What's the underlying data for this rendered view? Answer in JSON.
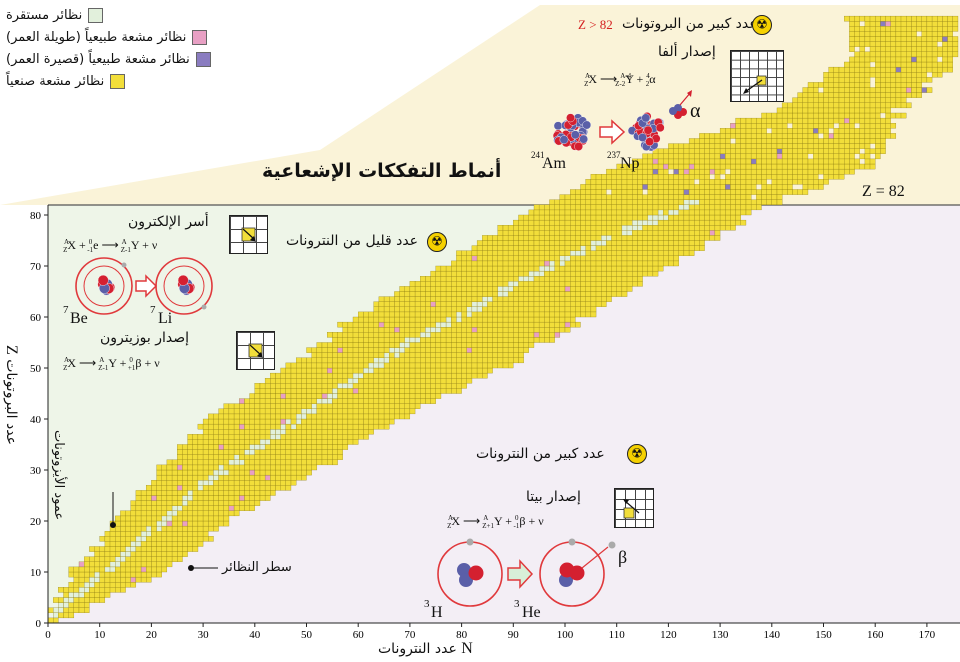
{
  "legend": {
    "items": [
      {
        "label": "نظائر مستقرة",
        "color": "#e2f0dc"
      },
      {
        "label": "نظائر مشعة طبيعياً (طويلة العمر)",
        "color": "#e8a0c4"
      },
      {
        "label": "نظائر مشعة طبيعياً (قصيرة العمر)",
        "color": "#8a7cc0"
      },
      {
        "label": "نظائر مشعة صنعياً",
        "color": "#f2de3a"
      }
    ]
  },
  "title": "أنماط التفككات الإشعاعية",
  "z82_label": "Z = 82",
  "regions": {
    "heavy": {
      "label": "عدد كبير من البروتونات",
      "cond": "Z > 82",
      "decay": "إصدار ألفا"
    },
    "few_neutrons": {
      "label": "عدد قليل من النترونات",
      "decay1": "أسر الإلكترون",
      "decay2": "إصدار بوزيترون"
    },
    "many_neutrons": {
      "label": "عدد كبير من النترونات",
      "decay": "إصدار بيتا"
    }
  },
  "annotations": {
    "isobar_column": "عمود الأيزوتونات",
    "isotope_row": "سطر النظائر"
  },
  "nuclides": {
    "am": "Am",
    "am_mass": "241",
    "np": "Np",
    "np_mass": "237",
    "alpha": "α",
    "be": "Be",
    "be_mass": "7",
    "li": "Li",
    "li_mass": "7",
    "h": "H",
    "h_mass": "3",
    "he": "He",
    "he_mass": "3",
    "beta": "β"
  },
  "equations": {
    "alpha": {
      "lhs": "X",
      "rhs_y": "Y",
      "rhs_a": "α",
      "a": "A",
      "z": "Z",
      "a4": "A-4",
      "z2": "Z-2",
      "four": "4",
      "two": "2"
    },
    "ec": {
      "x": "X",
      "e": "e",
      "y": "Y",
      "nu": "ν",
      "a": "A",
      "z": "Z",
      "zero": "0",
      "m1": "-1",
      "zm1": "Z-1"
    },
    "pos": {
      "x": "X",
      "y": "Y",
      "b": "β",
      "nu": "ν",
      "a": "A",
      "z": "Z",
      "zm1": "Z-1",
      "zero": "0",
      "p1": "+1"
    },
    "beta": {
      "x": "X",
      "y": "Y",
      "b": "β",
      "nu": "ν",
      "a": "A",
      "z": "Z",
      "zp1": "Z+1",
      "zero": "0",
      "m1": "-1"
    },
    "plus": "+",
    "arrow": "⟶"
  },
  "axes": {
    "x_label": "عدد النترونات",
    "x_symbol": "N",
    "y_label": "عدد البروتونات",
    "y_symbol": "Z",
    "x_ticks": [
      "0",
      "10",
      "20",
      "30",
      "40",
      "50",
      "60",
      "70",
      "80",
      "90",
      "100",
      "110",
      "120",
      "130",
      "140",
      "150",
      "160",
      "170"
    ],
    "y_ticks": [
      "0",
      "10",
      "20",
      "30",
      "40",
      "50",
      "60",
      "70",
      "80"
    ]
  },
  "chart_data": {
    "type": "heatmap",
    "xlabel": "N عدد النترونات",
    "ylabel": "Z عدد البروتونات",
    "xlim": [
      0,
      176
    ],
    "ylim": [
      0,
      82
    ],
    "band": [
      {
        "z": 0,
        "n_min": 0,
        "n_max": 1
      },
      {
        "z": 2,
        "n_min": 1,
        "n_max": 6
      },
      {
        "z": 10,
        "n_min": 5,
        "n_max": 22
      },
      {
        "z": 20,
        "n_min": 14,
        "n_max": 35
      },
      {
        "z": 30,
        "n_min": 22,
        "n_max": 52
      },
      {
        "z": 40,
        "n_min": 32,
        "n_max": 68
      },
      {
        "z": 50,
        "n_min": 47,
        "n_max": 88
      },
      {
        "z": 60,
        "n_min": 60,
        "n_max": 104
      },
      {
        "z": 70,
        "n_min": 77,
        "n_max": 120
      },
      {
        "z": 80,
        "n_min": 93,
        "n_max": 136
      },
      {
        "z": 90,
        "n_min": 112,
        "n_max": 160
      },
      {
        "z": 100,
        "n_min": 140,
        "n_max": 164
      },
      {
        "z": 110,
        "n_min": 155,
        "n_max": 176
      }
    ],
    "stable_line": [
      {
        "n": 0,
        "z": 1
      },
      {
        "n": 10,
        "z": 9
      },
      {
        "n": 20,
        "z": 18
      },
      {
        "n": 30,
        "z": 27
      },
      {
        "n": 40,
        "z": 34
      },
      {
        "n": 50,
        "z": 41
      },
      {
        "n": 60,
        "z": 48
      },
      {
        "n": 70,
        "z": 55
      },
      {
        "n": 80,
        "z": 60
      },
      {
        "n": 90,
        "z": 66
      },
      {
        "n": 100,
        "z": 71
      },
      {
        "n": 110,
        "z": 76
      },
      {
        "n": 120,
        "z": 80
      },
      {
        "n": 126,
        "z": 83
      }
    ]
  },
  "colors": {
    "artificial": "#f2de3a",
    "stable": "#e2f0dc",
    "long_lived": "#e8a0c4",
    "short_lived": "#8a7cc0",
    "left_bg": "#eef5e8",
    "right_bg": "#f3eef5",
    "top_bg": "#faf3d8"
  }
}
